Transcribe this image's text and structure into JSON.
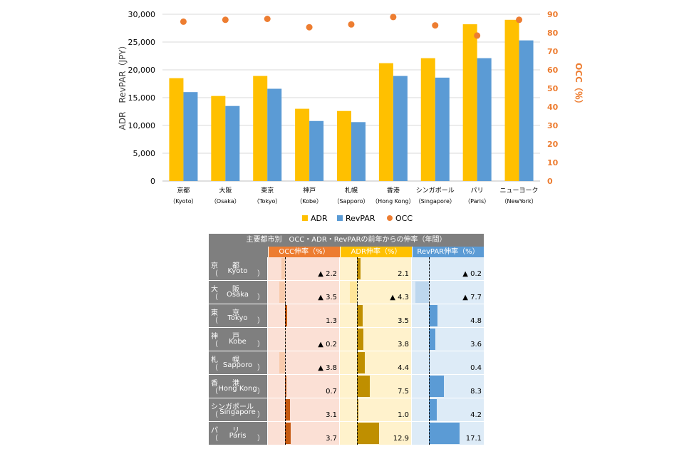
{
  "chart_data": {
    "type": "bar",
    "categories": [
      {
        "jp": "京都",
        "en": "（Kyoto）"
      },
      {
        "jp": "大阪",
        "en": "（Osaka）"
      },
      {
        "jp": "東京",
        "en": "（Tokyo）"
      },
      {
        "jp": "神戸",
        "en": "（Kobe）"
      },
      {
        "jp": "札幌",
        "en": "（Sapporo）"
      },
      {
        "jp": "香港",
        "en": "（Hong Kong）"
      },
      {
        "jp": "シンガポール",
        "en": "（Singapore）"
      },
      {
        "jp": "パリ",
        "en": "（Paris）"
      },
      {
        "jp": "ニューヨーク",
        "en": "（NewYork）"
      }
    ],
    "series": [
      {
        "name": "ADR",
        "axis": "left",
        "kind": "bar",
        "color": "#ffc000",
        "values": [
          18500,
          15300,
          18900,
          13000,
          12600,
          21200,
          22100,
          28200,
          29000
        ]
      },
      {
        "name": "RevPAR",
        "axis": "left",
        "kind": "bar",
        "color": "#5b9bd5",
        "values": [
          16000,
          13500,
          16600,
          10800,
          10600,
          18900,
          18600,
          22100,
          25300
        ]
      },
      {
        "name": "OCC",
        "axis": "right",
        "kind": "scatter",
        "color": "#ed7d31",
        "values": [
          86,
          87,
          87.5,
          83,
          84.5,
          88.5,
          84,
          78.5,
          87
        ]
      }
    ],
    "ylabel": "ADR　RevPAR（JPY）",
    "ylabel_right": "OCC（％）",
    "ylim": [
      0,
      30000
    ],
    "yticks": [
      "0",
      "5,000",
      "10,000",
      "15,000",
      "20,000",
      "25,000",
      "30,000"
    ],
    "ylim_right": [
      0,
      90
    ],
    "yticks_right": [
      "0",
      "10",
      "20",
      "30",
      "40",
      "50",
      "60",
      "70",
      "80",
      "90"
    ],
    "grid": true,
    "legend_placement": "bottom"
  },
  "table": {
    "title": "主要都市別　OCC・ADR・RevPARの前年からの伸率（年間）",
    "headers": [
      "OCC伸率（%）",
      "ADR伸率（%）",
      "RevPAR伸率（%）"
    ],
    "colors": {
      "occ": "#c55a11",
      "adr": "#bf8f00",
      "rev": "#5b9bd5",
      "occ_neg": "#f8cbad",
      "adr_neg": "#ffe699",
      "rev_neg": "#bdd7ee"
    },
    "rows": [
      {
        "jp": "京　　都",
        "en_l": "（",
        "en": "Kyoto",
        "en_r": "）",
        "occ": -2.2,
        "occ_label": "▲ 2.2",
        "adr": 2.1,
        "adr_label": "2.1",
        "rev": -0.2,
        "rev_label": "▲ 0.2"
      },
      {
        "jp": "大　　阪",
        "en_l": "（",
        "en": "Osaka",
        "en_r": "）",
        "occ": -3.5,
        "occ_label": "▲ 3.5",
        "adr": -4.3,
        "adr_label": "▲ 4.3",
        "rev": -7.7,
        "rev_label": "▲ 7.7"
      },
      {
        "jp": "東　　京",
        "en_l": "（",
        "en": "Tokyo",
        "en_r": "）",
        "occ": 1.3,
        "occ_label": "1.3",
        "adr": 3.5,
        "adr_label": "3.5",
        "rev": 4.8,
        "rev_label": "4.8"
      },
      {
        "jp": "神　　戸",
        "en_l": "（",
        "en": "Kobe",
        "en_r": "）",
        "occ": -0.2,
        "occ_label": "▲ 0.2",
        "adr": 3.8,
        "adr_label": "3.8",
        "rev": 3.6,
        "rev_label": "3.6"
      },
      {
        "jp": "札　　幌",
        "en_l": "（",
        "en": "Sapporo",
        "en_r": "）",
        "occ": -3.8,
        "occ_label": "▲ 3.8",
        "adr": 4.4,
        "adr_label": "4.4",
        "rev": 0.4,
        "rev_label": "0.4"
      },
      {
        "jp": "香　　港",
        "en_l": "（",
        "en": "Hong Kong",
        "en_r": "）",
        "occ": 0.7,
        "occ_label": "0.7",
        "adr": 7.5,
        "adr_label": "7.5",
        "rev": 8.3,
        "rev_label": "8.3"
      },
      {
        "jp": "シンガポール",
        "en_l": "（",
        "en": "Singapore",
        "en_r": "）",
        "occ": 3.1,
        "occ_label": "3.1",
        "adr": 1.0,
        "adr_label": "1.0",
        "rev": 4.2,
        "rev_label": "4.2"
      },
      {
        "jp": "パ　　リ",
        "en_l": "（",
        "en": "Paris",
        "en_r": "）",
        "occ": 3.7,
        "occ_label": "3.7",
        "adr": 12.9,
        "adr_label": "12.9",
        "rev": 17.1,
        "rev_label": "17.1"
      }
    ]
  }
}
